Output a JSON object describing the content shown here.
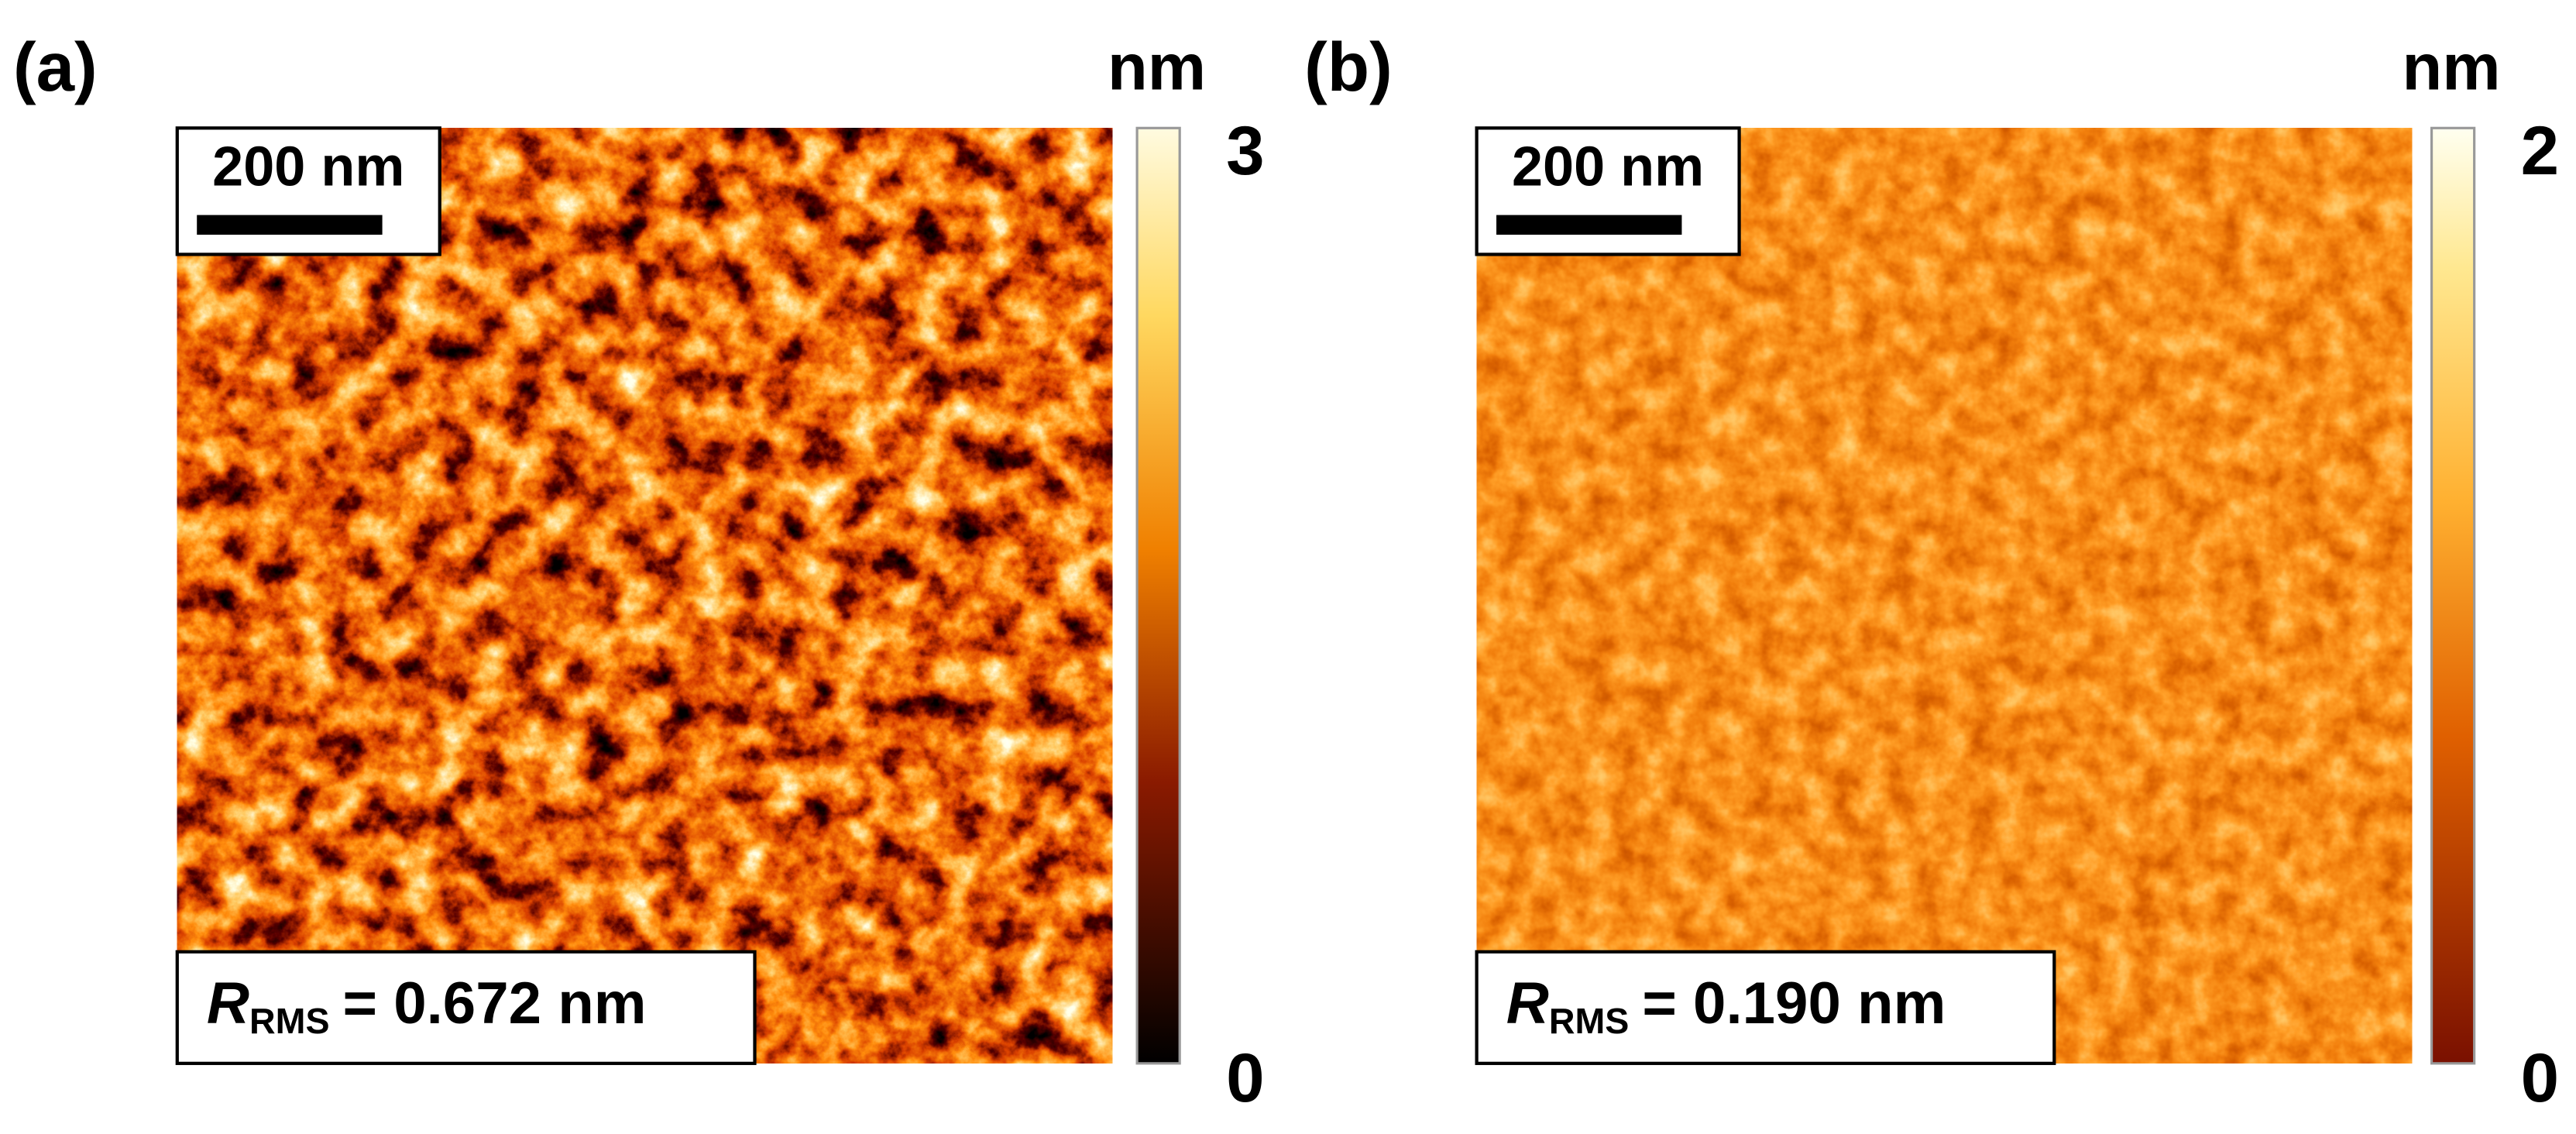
{
  "panels": [
    {
      "label": "(a)",
      "unit": "nm",
      "colorbar_max": 3,
      "colorbar_min": 0,
      "scale_bar": "200 nm",
      "rms_symbol": "R",
      "rms_subscript": "RMS",
      "rms_value": "= 0.672 nm"
    },
    {
      "label": "(b)",
      "unit": "nm",
      "colorbar_max": 2,
      "colorbar_min": 0,
      "scale_bar": "200 nm",
      "rms_symbol": "R",
      "rms_subscript": "RMS",
      "rms_value": "= 0.190 nm"
    }
  ]
}
